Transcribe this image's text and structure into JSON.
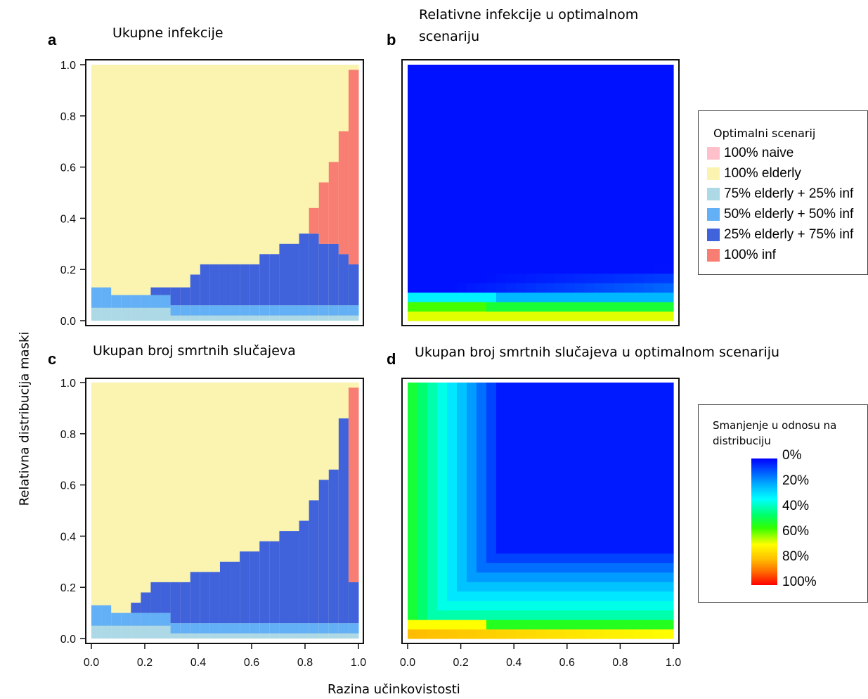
{
  "x_axis_title": "Razina učinkovistosti",
  "y_axis_title": "Relativna distribucija maski",
  "ticks": [
    "0.0",
    "0.2",
    "0.4",
    "0.6",
    "0.8",
    "1.0"
  ],
  "panels": {
    "a": {
      "letter": "a",
      "title": "Ukupne infekcije"
    },
    "b": {
      "letter": "b",
      "title": "Relativne infekcije u optimalnom scenariju"
    },
    "c": {
      "letter": "c",
      "title": "Ukupan broj smrtnih slučajeva"
    },
    "d": {
      "letter": "d",
      "title": "Ukupan broj smrtnih slučajeva u optimalnom scenariju"
    }
  },
  "legend_scenarios": {
    "title": "Optimalni scenarij",
    "items": [
      {
        "label": "100% naive",
        "color": "#ffc0cb"
      },
      {
        "label": "100% elderly",
        "color": "#fbf3b0"
      },
      {
        "label": "75% elderly + 25% inf",
        "color": "#add8e6"
      },
      {
        "label": "50% elderly + 50% inf",
        "color": "#63b0f7"
      },
      {
        "label": "25% elderly + 75% inf",
        "color": "#4063db"
      },
      {
        "label": "100% inf",
        "color": "#f87d72"
      }
    ]
  },
  "legend_gradient": {
    "title": "Smanjenje u odnosu na distribuciju",
    "labels": [
      "0%",
      "20%",
      "40%",
      "60%",
      "80%",
      "100%"
    ]
  },
  "chart_data": [
    {
      "panel": "a",
      "type": "heatmap",
      "title": "Ukupne infekcije",
      "xlabel": "Razina učinkovistosti",
      "ylabel": "Relativna distribucija maski",
      "xlim": [
        0,
        1
      ],
      "ylim": [
        0,
        1
      ],
      "description_of_categories": "optimal scenario per cell",
      "boundaries": {
        "light_blue_top": [
          [
            0.0,
            0.05
          ],
          [
            0.3,
            0.05
          ],
          [
            0.3,
            0.02
          ],
          [
            1.0,
            0.02
          ]
        ],
        "medium_blue_top": [
          [
            0.0,
            0.13
          ],
          [
            0.08,
            0.13
          ],
          [
            0.08,
            0.1
          ],
          [
            0.28,
            0.1
          ],
          [
            0.28,
            0.06
          ],
          [
            1.0,
            0.06
          ]
        ],
        "dark_blue_top": [
          [
            0.28,
            0.13
          ],
          [
            0.36,
            0.18
          ],
          [
            0.44,
            0.22
          ],
          [
            0.64,
            0.26
          ],
          [
            0.72,
            0.3
          ],
          [
            0.8,
            0.34
          ],
          [
            1.0,
            0.22
          ]
        ],
        "red_region_left_edge": [
          [
            0.8,
            0.38
          ],
          [
            0.84,
            0.44
          ],
          [
            0.88,
            0.54
          ],
          [
            0.92,
            0.62
          ],
          [
            0.96,
            0.76
          ],
          [
            1.0,
            0.98
          ]
        ]
      }
    },
    {
      "panel": "b",
      "type": "heatmap",
      "title": "Relativne infekcije u optimalnom scenariju",
      "xlim": [
        0,
        1
      ],
      "ylim": [
        0,
        1
      ],
      "colorscale_reference": "Smanjenje u odnosu na distribuciju"
    },
    {
      "panel": "c",
      "type": "heatmap",
      "title": "Ukupan broj smrtnih slučajeva",
      "xlim": [
        0,
        1
      ],
      "ylim": [
        0,
        1
      ],
      "boundaries": {
        "dark_blue_top": [
          [
            0.16,
            0.11
          ],
          [
            0.24,
            0.18
          ],
          [
            0.36,
            0.22
          ],
          [
            0.48,
            0.26
          ],
          [
            0.6,
            0.34
          ],
          [
            0.72,
            0.42
          ],
          [
            0.84,
            0.54
          ],
          [
            0.92,
            0.72
          ],
          [
            0.96,
            0.86
          ]
        ],
        "red_region": [
          [
            0.96,
            0.26
          ],
          [
            1.0,
            0.98
          ]
        ]
      }
    },
    {
      "panel": "d",
      "type": "heatmap",
      "title": "Ukupan broj smrtnih slučajeva u optimalnom scenariju",
      "xlim": [
        0,
        1
      ],
      "ylim": [
        0,
        1
      ],
      "colorscale_reference": "Smanjenje u odnosu na distribuciju"
    }
  ]
}
